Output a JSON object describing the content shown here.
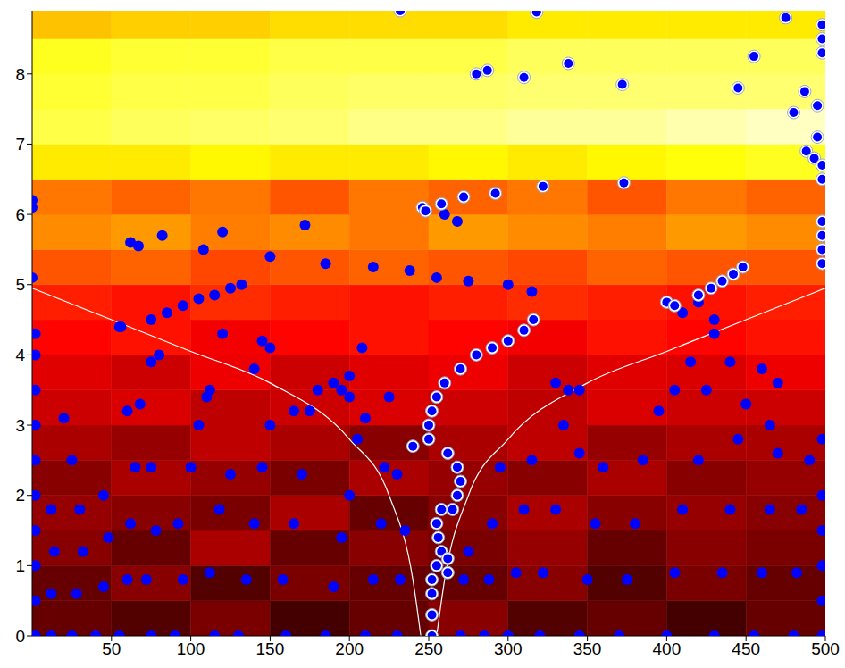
{
  "chart_data": {
    "type": "heatmap",
    "xlim": [
      0,
      500
    ],
    "xticks": [
      50,
      100,
      150,
      200,
      250,
      300,
      350,
      400,
      450,
      500
    ],
    "ylim": [
      0,
      8.9
    ],
    "yticks": [
      0,
      1,
      2,
      3,
      4,
      5,
      6,
      7,
      8
    ],
    "heatmap": {
      "x": [
        0,
        50,
        100,
        150,
        200,
        250,
        300,
        350,
        400,
        450,
        500
      ],
      "y": [
        0,
        0.5,
        1,
        1.5,
        2,
        2.5,
        3,
        3.5,
        4,
        4.5,
        5,
        5.5,
        6,
        6.5,
        7,
        7.5,
        8,
        8.5,
        8.9
      ],
      "range": [
        0,
        1
      ],
      "values": [
        [
          0.15,
          0.12,
          0.18,
          0.1,
          0.15,
          0.2,
          0.12,
          0.15,
          0.1,
          0.15
        ],
        [
          0.15,
          0.2,
          0.12,
          0.18,
          0.15,
          0.15,
          0.2,
          0.12,
          0.18,
          0.15
        ],
        [
          0.2,
          0.15,
          0.25,
          0.15,
          0.2,
          0.18,
          0.22,
          0.15,
          0.2,
          0.18
        ],
        [
          0.22,
          0.2,
          0.18,
          0.25,
          0.15,
          0.2,
          0.25,
          0.2,
          0.22,
          0.2
        ],
        [
          0.2,
          0.25,
          0.22,
          0.18,
          0.25,
          0.22,
          0.2,
          0.25,
          0.2,
          0.22
        ],
        [
          0.25,
          0.22,
          0.28,
          0.25,
          0.2,
          0.25,
          0.28,
          0.22,
          0.25,
          0.25
        ],
        [
          0.3,
          0.32,
          0.28,
          0.3,
          0.32,
          0.3,
          0.28,
          0.32,
          0.3,
          0.3
        ],
        [
          0.33,
          0.3,
          0.35,
          0.3,
          0.33,
          0.35,
          0.3,
          0.33,
          0.32,
          0.35
        ],
        [
          0.38,
          0.4,
          0.36,
          0.38,
          0.4,
          0.38,
          0.36,
          0.4,
          0.38,
          0.4
        ],
        [
          0.42,
          0.4,
          0.44,
          0.42,
          0.4,
          0.42,
          0.44,
          0.42,
          0.4,
          0.42
        ],
        [
          0.5,
          0.52,
          0.48,
          0.5,
          0.52,
          0.5,
          0.48,
          0.52,
          0.5,
          0.5
        ],
        [
          0.58,
          0.6,
          0.56,
          0.58,
          0.55,
          0.6,
          0.58,
          0.56,
          0.6,
          0.58
        ],
        [
          0.55,
          0.52,
          0.55,
          0.5,
          0.55,
          0.52,
          0.55,
          0.5,
          0.55,
          0.52
        ],
        [
          0.72,
          0.72,
          0.74,
          0.72,
          0.72,
          0.74,
          0.72,
          0.74,
          0.76,
          0.78
        ],
        [
          0.82,
          0.84,
          0.85,
          0.86,
          0.88,
          0.88,
          0.9,
          0.9,
          0.92,
          0.94
        ],
        [
          0.8,
          0.82,
          0.82,
          0.84,
          0.85,
          0.85,
          0.86,
          0.86,
          0.86,
          0.86
        ],
        [
          0.78,
          0.8,
          0.8,
          0.82,
          0.82,
          0.82,
          0.84,
          0.84,
          0.84,
          0.84
        ],
        [
          0.66,
          0.68,
          0.68,
          0.7,
          0.7,
          0.7,
          0.72,
          0.72,
          0.72,
          0.72
        ]
      ]
    },
    "series": [
      {
        "type": "line",
        "color": "#ffffff",
        "x": [
          0,
          50,
          100,
          150,
          200,
          225,
          240,
          245
        ],
        "values": [
          4.95,
          4.5,
          4.05,
          3.6,
          2.8,
          2.0,
          0.8,
          0
        ]
      },
      {
        "type": "line",
        "color": "#ffffff",
        "x": [
          255,
          260,
          275,
          300,
          350,
          400,
          450,
          500
        ],
        "values": [
          0,
          0.8,
          2.0,
          2.8,
          3.6,
          4.05,
          4.5,
          4.95
        ]
      },
      {
        "type": "scatter",
        "color": "#0000ff",
        "marker": "circle",
        "x": [
          2,
          2,
          2,
          2,
          2,
          2,
          2,
          2,
          2,
          2,
          0,
          0,
          0,
          12,
          12,
          14,
          12,
          25,
          28,
          32,
          30,
          25,
          20,
          40,
          45,
          48,
          45,
          55,
          60,
          62,
          65,
          68,
          60,
          55,
          75,
          72,
          78,
          75,
          75,
          80,
          90,
          95,
          92,
          100,
          105,
          110,
          112,
          115,
          112,
          118,
          125,
          130,
          135,
          140,
          145,
          150,
          140,
          145,
          150,
          160,
          158,
          165,
          170,
          175,
          180,
          185,
          190,
          195,
          200,
          205,
          210,
          210,
          215,
          220,
          222,
          225,
          230,
          232,
          235,
          230,
          270,
          272,
          275,
          285,
          288,
          290,
          295,
          300,
          305,
          310,
          315,
          320,
          322,
          330,
          335,
          338,
          345,
          350,
          355,
          360,
          345,
          370,
          375,
          380,
          385,
          395,
          405,
          415,
          400,
          405,
          410,
          420,
          425,
          430,
          440,
          430,
          435,
          440,
          445,
          450,
          460,
          465,
          470,
          455,
          460,
          465,
          470,
          480,
          482,
          485,
          490,
          498,
          498,
          498,
          498,
          498,
          498,
          56,
          62,
          67,
          82,
          75,
          85,
          95,
          105,
          115,
          125,
          132,
          108,
          120,
          120,
          150,
          172,
          185,
          215,
          238,
          255,
          275,
          300,
          315,
          165,
          190,
          200,
          208,
          200,
          195,
          330,
          345,
          260,
          268,
          410,
          420,
          430
        ],
        "values": [
          0,
          0.5,
          1,
          1.5,
          2,
          2.5,
          3,
          3.5,
          4,
          4.3,
          5.1,
          6.1,
          6.2,
          0,
          0.6,
          1.2,
          1.8,
          0,
          0.6,
          1.2,
          1.8,
          2.5,
          3.1,
          0,
          0.7,
          1.4,
          2.0,
          0,
          0.8,
          1.6,
          2.4,
          3.3,
          3.2,
          4.4,
          0,
          0.8,
          1.5,
          2.4,
          3.9,
          4.0,
          0,
          0.8,
          1.6,
          2.4,
          3.0,
          3.4,
          3.5,
          0,
          0.9,
          1.8,
          2.3,
          0,
          0.8,
          1.6,
          2.4,
          3.0,
          3.8,
          4.2,
          4.1,
          0,
          0.8,
          1.6,
          2.3,
          3.2,
          3.5,
          0,
          0.7,
          1.4,
          2.0,
          2.8,
          3.1,
          0,
          0.8,
          1.6,
          2.4,
          3.4,
          0,
          0.8,
          1.5,
          2.3,
          0,
          0.8,
          1.2,
          0,
          0.8,
          1.6,
          2.4,
          0,
          0.9,
          1.8,
          2.5,
          0,
          0.9,
          1.8,
          3.0,
          3.5,
          0,
          0.8,
          1.6,
          2.4,
          2.6,
          0,
          0.8,
          1.6,
          2.5,
          3.2,
          3.5,
          3.9,
          0,
          0.9,
          1.8,
          2.5,
          3.5,
          4.3,
          3.9,
          0,
          0.9,
          1.8,
          2.8,
          3.3,
          3.8,
          3.0,
          3.6,
          0,
          0.9,
          1.8,
          2.6,
          0,
          0.9,
          1.8,
          2.5,
          0,
          0.5,
          1.0,
          1.5,
          2,
          2.8,
          4.4,
          5.6,
          5.55,
          5.7,
          4.5,
          4.6,
          4.7,
          4.8,
          4.85,
          4.95,
          5.0,
          5.5,
          5.75,
          4.3,
          5.4,
          5.85,
          5.3,
          5.25,
          5.2,
          5.1,
          5.05,
          5.0,
          4.9,
          3.2,
          3.6,
          3.7,
          4.1,
          3.4,
          3.5,
          3.6,
          3.5,
          6.0,
          5.9,
          4.6,
          4.75,
          4.5
        ]
      },
      {
        "type": "scatter",
        "color": "#0000ff",
        "marker": "ringed",
        "x": [
          252,
          252,
          252,
          252,
          255,
          258,
          256,
          255,
          258,
          262,
          262,
          265,
          268,
          270,
          268,
          262,
          250,
          250,
          252,
          255,
          260,
          270,
          280,
          290,
          300,
          310,
          316,
          240,
          246,
          248,
          258,
          272,
          292,
          322,
          232,
          318,
          280,
          287,
          310,
          338,
          372,
          373,
          445,
          455,
          475,
          480,
          487,
          488,
          495,
          495,
          493,
          498,
          498,
          498,
          498,
          498,
          498,
          498,
          498,
          498,
          400,
          405,
          420,
          428,
          435,
          442,
          448
        ],
        "values": [
          0.0,
          0.3,
          0.6,
          0.8,
          1.0,
          1.2,
          1.4,
          1.6,
          1.8,
          0.9,
          1.1,
          1.8,
          2.0,
          2.2,
          2.4,
          2.6,
          2.8,
          3.0,
          3.2,
          3.4,
          3.6,
          3.8,
          4.0,
          4.1,
          4.2,
          4.35,
          4.5,
          2.7,
          6.1,
          6.05,
          6.15,
          6.25,
          6.3,
          6.4,
          8.9,
          8.88,
          8.0,
          8.05,
          7.95,
          8.15,
          7.85,
          6.45,
          7.8,
          8.25,
          8.8,
          7.45,
          7.75,
          6.9,
          7.55,
          7.1,
          6.8,
          8.7,
          8.5,
          8.3,
          6.7,
          6.5,
          5.9,
          5.7,
          5.5,
          5.3,
          4.75,
          4.7,
          4.85,
          4.95,
          5.05,
          5.15,
          5.25
        ]
      }
    ]
  }
}
